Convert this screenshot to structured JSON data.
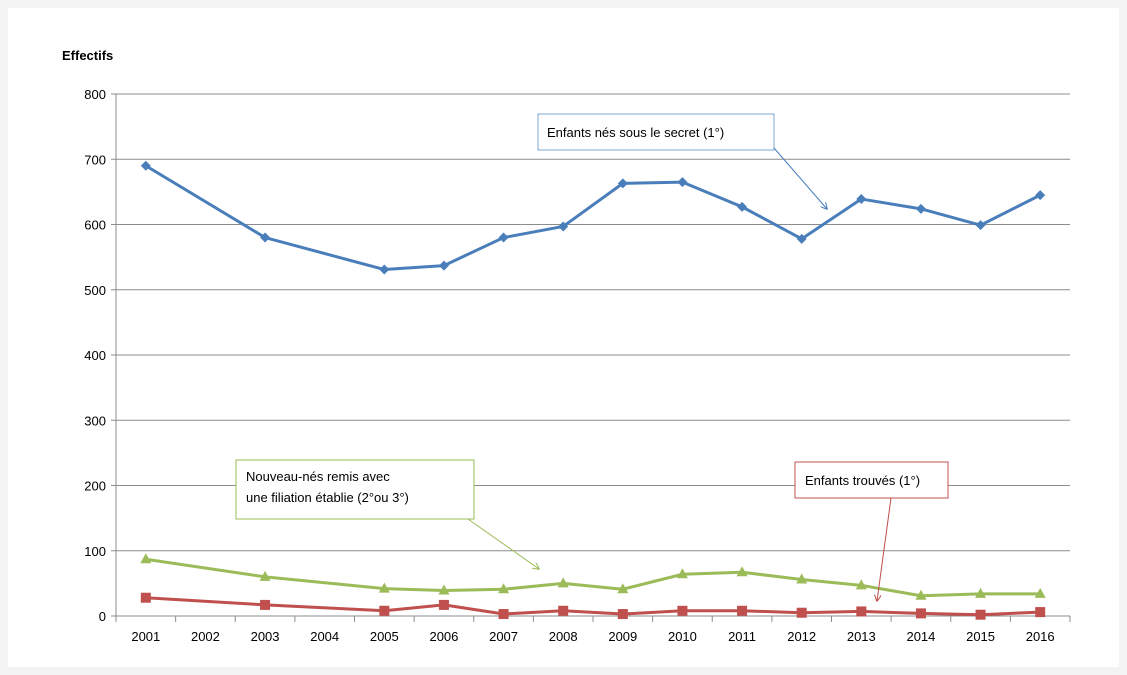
{
  "chart_data": {
    "type": "line",
    "title": "",
    "ylabel": "Effectifs",
    "xlabel": "",
    "ylim": [
      0,
      800
    ],
    "yticks": [
      0,
      100,
      200,
      300,
      400,
      500,
      600,
      700,
      800
    ],
    "categories": [
      "2001",
      "2002",
      "2003",
      "2004",
      "2005",
      "2006",
      "2007",
      "2008",
      "2009",
      "2010",
      "2011",
      "2012",
      "2013",
      "2014",
      "2015",
      "2016"
    ],
    "grid": "horizontal",
    "legend": "none",
    "series": [
      {
        "name": "Enfants nés sous le secret (1°)",
        "color": "#4a7ebb",
        "marker": "diamond",
        "x": [
          "2001",
          "2003",
          "2005",
          "2006",
          "2007",
          "2008",
          "2009",
          "2010",
          "2011",
          "2012",
          "2013",
          "2014",
          "2015",
          "2016"
        ],
        "values": [
          690,
          580,
          531,
          537,
          580,
          597,
          663,
          665,
          627,
          578,
          639,
          624,
          599,
          645
        ]
      },
      {
        "name": "Nouveau-nés remis avec une filiation établie (2°ou 3°)",
        "color": "#9bbb59",
        "marker": "triangle",
        "x": [
          "2001",
          "2003",
          "2005",
          "2006",
          "2007",
          "2008",
          "2009",
          "2010",
          "2011",
          "2012",
          "2013",
          "2014",
          "2015",
          "2016"
        ],
        "values": [
          87,
          60,
          42,
          39,
          41,
          50,
          41,
          64,
          67,
          56,
          47,
          31,
          34,
          34
        ]
      },
      {
        "name": "Enfants trouvés (1°)",
        "color": "#c0504d",
        "marker": "square",
        "x": [
          "2001",
          "2003",
          "2005",
          "2006",
          "2007",
          "2008",
          "2009",
          "2010",
          "2011",
          "2012",
          "2013",
          "2014",
          "2015",
          "2016"
        ],
        "values": [
          28,
          17,
          8,
          17,
          3,
          8,
          3,
          8,
          8,
          5,
          7,
          4,
          2,
          6
        ]
      }
    ],
    "annotations": [
      {
        "lines": [
          "Enfants nés sous le secret (1°)"
        ],
        "border_color": "#7aa8d6",
        "arrow_color": "#4a7ebb"
      },
      {
        "lines": [
          "Nouveau-nés remis avec",
          "une filiation établie (2°ou 3°)"
        ],
        "border_color": "#9bbb59",
        "arrow_color": "#9bbb59"
      },
      {
        "lines": [
          "Enfants trouvés (1°)"
        ],
        "border_color": "#c0504d",
        "arrow_color": "#c0504d"
      }
    ]
  }
}
